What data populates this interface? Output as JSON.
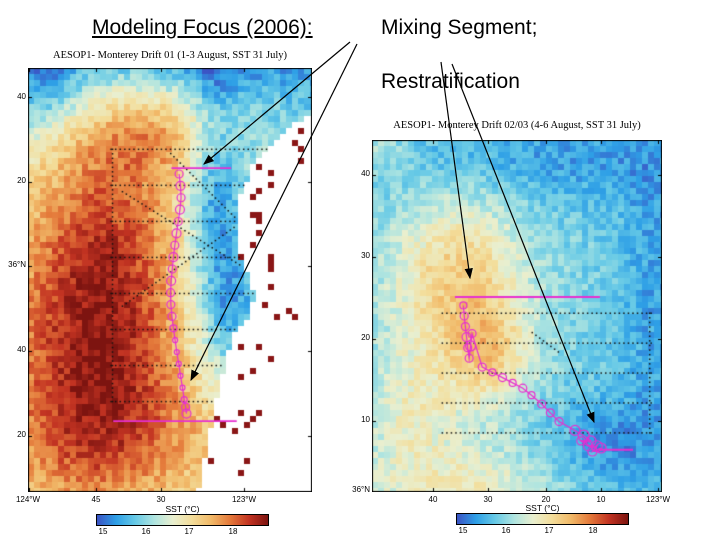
{
  "slide": {
    "title": "Modeling Focus (2006):",
    "subtitle_line1": "Mixing Segment;",
    "subtitle_line2": "Restratification"
  },
  "left_map": {
    "title": "AESOP1- Monterey Drift 01 (1-3 August, SST 31 July)",
    "yticks": [
      "40",
      "20",
      "36°N",
      "40",
      "20"
    ],
    "xticks": [
      "124°W",
      "45",
      "30",
      "123°W"
    ],
    "colorbar": {
      "label": "SST (°C)",
      "ticks": [
        "15",
        "16",
        "17",
        "18"
      ]
    }
  },
  "right_map": {
    "title": "AESOP1- Monterey Drift 02/03 (4-6 August, SST 31 July)",
    "yticks": [
      "40",
      "30",
      "20",
      "10"
    ],
    "corner_label": "36°N",
    "xticks": [
      "40",
      "30",
      "20",
      "10",
      "123°W"
    ],
    "colorbar": {
      "label": "SST (°C)",
      "ticks": [
        "15",
        "16",
        "17",
        "18"
      ]
    }
  },
  "colors": {
    "sst_palette": [
      "#3b53c4",
      "#2e9fe6",
      "#66c9e6",
      "#aee4e0",
      "#e9efcf",
      "#f3dd9a",
      "#f1b968",
      "#e4793a",
      "#c23322",
      "#7d1410"
    ],
    "drift_track": "#e62fd0",
    "survey_dots": "#111111",
    "arrow": "#000000",
    "land": "#ffffff"
  },
  "chart_data": [
    {
      "type": "heatmap",
      "title": "AESOP1- Monterey Drift 01 (1-3 August, SST 31 July)",
      "variable": "SST (°C)",
      "color_range": [
        15,
        18.5
      ],
      "colorbar_ticks": [
        15,
        16,
        17,
        18
      ],
      "x_tick_labels": [
        "124°W",
        "45",
        "30",
        "123°W"
      ],
      "y_tick_labels": [
        "40",
        "20",
        "36°N",
        "40",
        "20"
      ],
      "approx_features": {
        "offshore_warm_core_C": 18.0,
        "coastal_upwelling_band_C": 15.6,
        "northern_cool_water_C": 15.4,
        "warm_tongue_north_C": 17.0
      },
      "overlays": [
        "black dotted ship-survey lines",
        "magenta drifter track with inertial loops (Drift 01)",
        "white land mask (California coast, Monterey Bay)"
      ]
    },
    {
      "type": "heatmap",
      "title": "AESOP1- Monterey Drift 02/03 (4-6 August, SST 31 July)",
      "variable": "SST (°C)",
      "color_range": [
        15,
        18.5
      ],
      "colorbar_ticks": [
        15,
        16,
        17,
        18
      ],
      "x_tick_labels": [
        "40",
        "30",
        "20",
        "10",
        "123°W"
      ],
      "y_tick_labels": [
        "40",
        "30",
        "20",
        "10",
        "36°N"
      ],
      "approx_features": {
        "warm_filament_core_C": 17.2,
        "background_water_C": 15.8
      },
      "overlays": [
        "black dotted ship-survey lines",
        "magenta drifter track with loops (Drift 02/03)"
      ]
    }
  ],
  "annotation_arrows": 4
}
